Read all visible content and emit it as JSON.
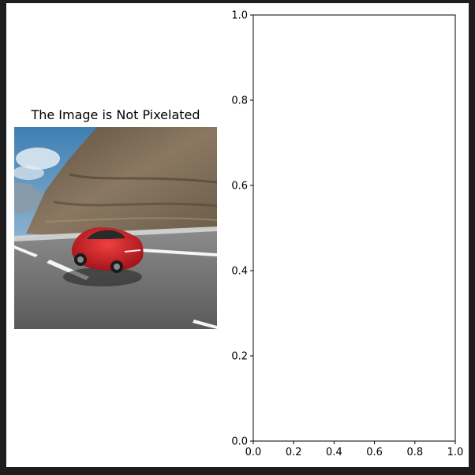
{
  "figure": {
    "photo_title": "The Image is Not Pixelated",
    "photo_subject": "red sports car on a mountain road"
  },
  "chart_data": [
    {
      "type": "image",
      "title": "The Image is Not Pixelated"
    },
    {
      "type": "line",
      "title": "",
      "xlabel": "",
      "ylabel": "",
      "series": [],
      "xlim": [
        0.0,
        1.0
      ],
      "ylim": [
        0.0,
        1.0
      ],
      "xticks": [
        "0.0",
        "0.2",
        "0.4",
        "0.6",
        "0.8",
        "1.0"
      ],
      "yticks": [
        "0.0",
        "0.2",
        "0.4",
        "0.6",
        "0.8",
        "1.0"
      ],
      "grid": false
    }
  ],
  "colors": {
    "car": "#d81f25",
    "sky": "#6f9fc4",
    "road": "#6e6e6e",
    "cliff": "#7a6a55"
  }
}
